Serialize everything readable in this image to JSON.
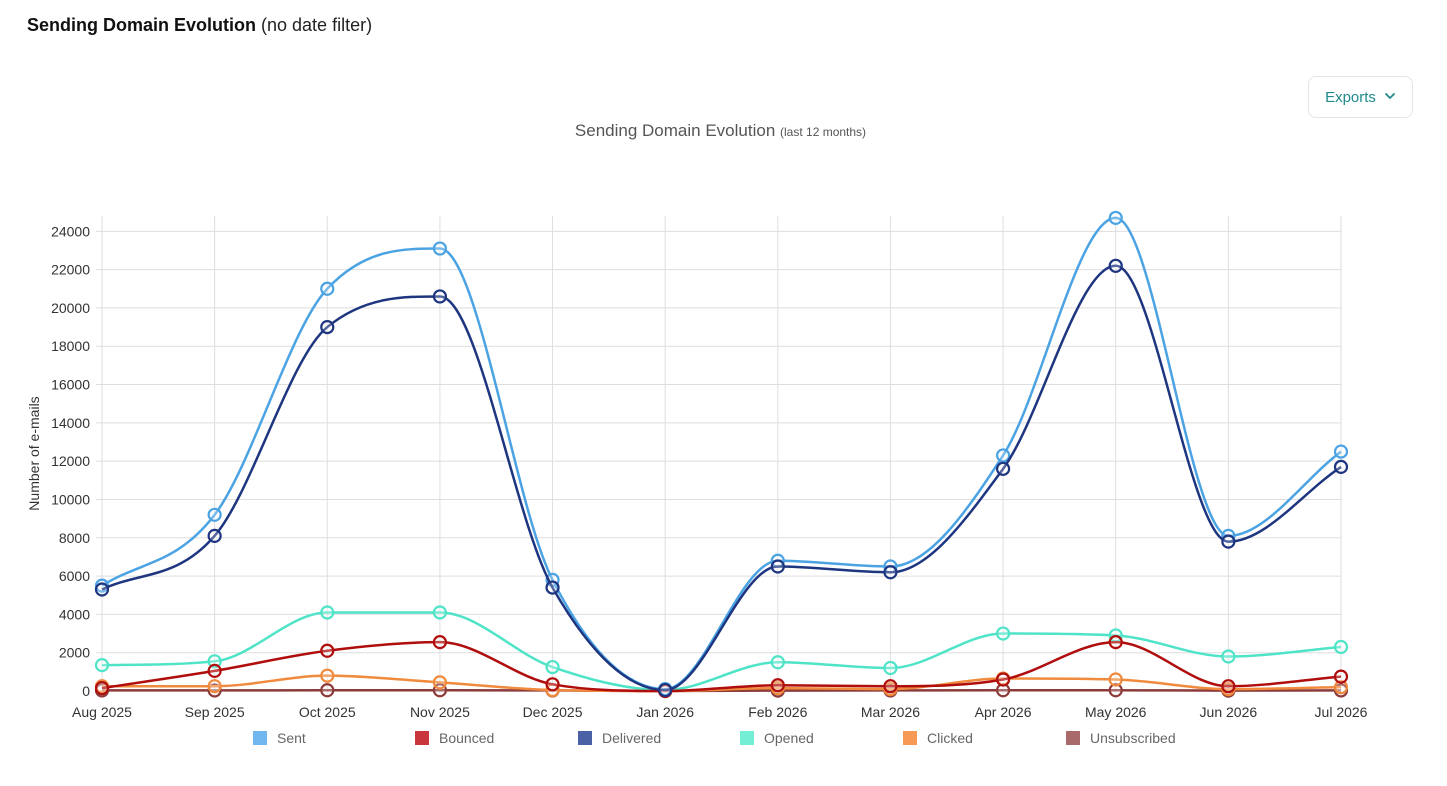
{
  "header": {
    "title": "Sending Domain Evolution",
    "subtitle": "(no date filter)"
  },
  "exports": {
    "label": "Exports"
  },
  "chart_data": {
    "type": "line",
    "title": "Sending Domain Evolution",
    "subtitle": "(last 12 months)",
    "xlabel": "",
    "ylabel": "Number of e-mails",
    "ylim": [
      0,
      24800
    ],
    "y_ticks": [
      0,
      2000,
      4000,
      6000,
      8000,
      10000,
      12000,
      14000,
      16000,
      18000,
      20000,
      22000,
      24000
    ],
    "categories": [
      "Aug 2025",
      "Sep 2025",
      "Oct 2025",
      "Nov 2025",
      "Dec 2025",
      "Jan 2026",
      "Feb 2026",
      "Mar 2026",
      "Apr 2026",
      "May 2026",
      "Jun 2026",
      "Jul 2026"
    ],
    "grid": true,
    "legend_position": "bottom",
    "series": [
      {
        "name": "Sent",
        "color": "#4ba3e3",
        "legend_color": "#6fb7ee",
        "values": [
          5500,
          9200,
          21000,
          23100,
          5800,
          100,
          6800,
          6500,
          12300,
          24700,
          8100,
          12500
        ]
      },
      {
        "name": "Bounced",
        "color": "#b00d0d",
        "legend_color": "#c9363b",
        "values": [
          150,
          1050,
          2100,
          2550,
          350,
          0,
          300,
          250,
          600,
          2550,
          250,
          750
        ]
      },
      {
        "name": "Delivered",
        "color": "#1e3580",
        "legend_color": "#4a61a5",
        "values": [
          5300,
          8100,
          19000,
          20600,
          5400,
          50,
          6500,
          6200,
          11600,
          22200,
          7800,
          11700
        ]
      },
      {
        "name": "Opened",
        "color": "#4fe3c8",
        "legend_color": "#74efd6",
        "values": [
          1350,
          1550,
          4100,
          4100,
          1250,
          50,
          1500,
          1200,
          3000,
          2900,
          1800,
          2300
        ]
      },
      {
        "name": "Clicked",
        "color": "#f08a3c",
        "legend_color": "#f79a55",
        "values": [
          250,
          250,
          800,
          450,
          50,
          0,
          150,
          100,
          650,
          600,
          100,
          200
        ]
      },
      {
        "name": "Unsubscribed",
        "color": "#8c3a3a",
        "legend_color": "#a86a6a",
        "values": [
          30,
          30,
          40,
          40,
          30,
          0,
          20,
          30,
          40,
          40,
          20,
          30
        ]
      }
    ]
  }
}
